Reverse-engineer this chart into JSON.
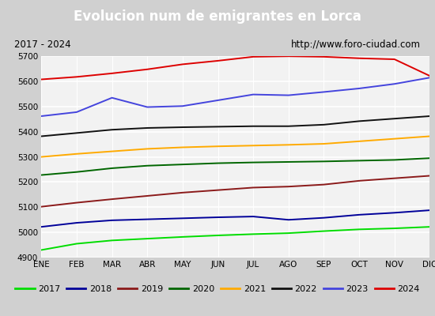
{
  "title": "Evolucion num de emigrantes en Lorca",
  "subtitle_left": "2017 - 2024",
  "subtitle_right": "http://www.foro-ciudad.com",
  "title_bg_color": "#4a7fc1",
  "title_text_color": "white",
  "months": [
    "ENE",
    "FEB",
    "MAR",
    "ABR",
    "MAY",
    "JUN",
    "JUL",
    "AGO",
    "SEP",
    "OCT",
    "NOV",
    "DIC"
  ],
  "ylim": [
    4900,
    5700
  ],
  "yticks": [
    4900,
    5000,
    5100,
    5200,
    5300,
    5400,
    5500,
    5600,
    5700
  ],
  "series": {
    "2017": {
      "color": "#00dd00",
      "values": [
        4930,
        4955,
        4968,
        4975,
        4982,
        4988,
        4993,
        4997,
        5005,
        5012,
        5016,
        5022
      ]
    },
    "2018": {
      "color": "#000099",
      "values": [
        5022,
        5038,
        5048,
        5052,
        5056,
        5060,
        5063,
        5050,
        5058,
        5070,
        5078,
        5088
      ]
    },
    "2019": {
      "color": "#8b1a1a",
      "values": [
        5102,
        5118,
        5132,
        5145,
        5158,
        5168,
        5178,
        5182,
        5190,
        5205,
        5215,
        5225
      ]
    },
    "2020": {
      "color": "#006600",
      "values": [
        5228,
        5240,
        5255,
        5265,
        5270,
        5275,
        5278,
        5280,
        5282,
        5285,
        5288,
        5295
      ]
    },
    "2021": {
      "color": "#ffaa00",
      "values": [
        5300,
        5312,
        5322,
        5332,
        5338,
        5342,
        5345,
        5348,
        5352,
        5362,
        5372,
        5382
      ]
    },
    "2022": {
      "color": "#111111",
      "values": [
        5382,
        5395,
        5408,
        5415,
        5418,
        5420,
        5422,
        5422,
        5428,
        5442,
        5452,
        5462
      ]
    },
    "2023": {
      "color": "#4444dd",
      "values": [
        5462,
        5478,
        5535,
        5498,
        5502,
        5525,
        5548,
        5545,
        5558,
        5572,
        5590,
        5615
      ]
    },
    "2024": {
      "color": "#dd0000",
      "values": [
        5608,
        5618,
        5632,
        5648,
        5668,
        5682,
        5698,
        5700,
        5698,
        5692,
        5688,
        5622
      ]
    }
  }
}
